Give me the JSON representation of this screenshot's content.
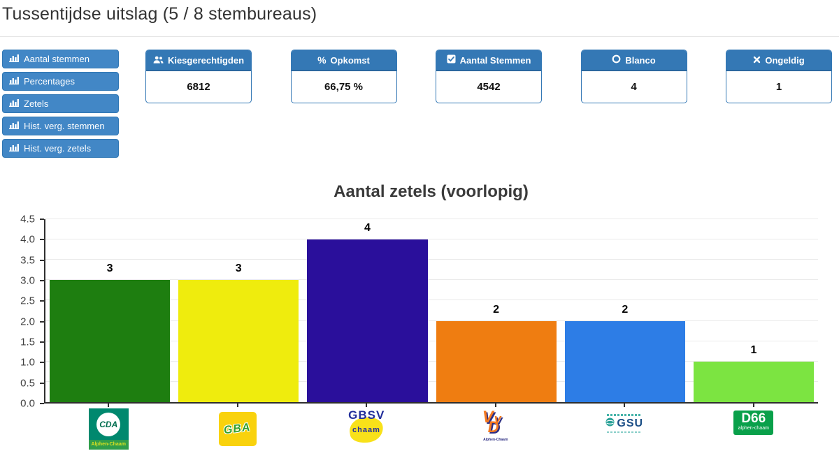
{
  "theme": {
    "button_blue": "#4287c6",
    "card_header_blue": "#3478b5",
    "card_header_border": "#2b679e",
    "axis_color": "#2f2f2f",
    "grid_color": "#eaeaea"
  },
  "page": {
    "title": "Tussentijdse uitslag (5 / 8 stembureaus)"
  },
  "sidebar": {
    "buttons": [
      {
        "icon": "bar-chart-icon",
        "label": "Aantal stemmen"
      },
      {
        "icon": "bar-chart-icon",
        "label": "Percentages"
      },
      {
        "icon": "bar-chart-icon",
        "label": "Zetels"
      },
      {
        "icon": "bar-chart-icon",
        "label": "Hist. verg. stemmen"
      },
      {
        "icon": "bar-chart-icon",
        "label": "Hist. verg. zetels"
      }
    ]
  },
  "stats": {
    "cards": [
      {
        "icon": "users-icon",
        "label": "Kiesgerechtigden",
        "value": "6812"
      },
      {
        "icon": "percent-icon",
        "label": "Opkomst",
        "value": "66,75 %"
      },
      {
        "icon": "check-square-icon",
        "label": "Aantal Stemmen",
        "value": "4542"
      },
      {
        "icon": "circle-icon",
        "label": "Blanco",
        "value": "4"
      },
      {
        "icon": "x-icon",
        "label": "Ongeldig",
        "value": "1"
      }
    ]
  },
  "chart_data": {
    "type": "bar",
    "title": "Aantal zetels (voorlopig)",
    "categories": [
      "CDA",
      "GBA",
      "GBSV",
      "VVD",
      "GSU",
      "D66"
    ],
    "values": [
      3,
      3,
      4,
      2,
      2,
      1
    ],
    "colors": [
      "#1e7e10",
      "#efec0d",
      "#2a0f9b",
      "#ef7d11",
      "#2d7de6",
      "#7ce441"
    ],
    "xlabel": "",
    "ylabel": "",
    "ylim": [
      0,
      4.5
    ],
    "ytick_step": 0.5,
    "grid": true,
    "legend": false,
    "value_labels": true
  },
  "parties": [
    {
      "name": "CDA",
      "logo": {
        "title": "CDA",
        "subtitle": "Alphen-Chaam"
      }
    },
    {
      "name": "GBA",
      "logo": {
        "title": "GBA"
      }
    },
    {
      "name": "GBSV",
      "logo": {
        "title": "GBSV",
        "subtitle": "chaam"
      }
    },
    {
      "name": "VVD",
      "logo": {
        "letters": [
          "V",
          "v",
          "D"
        ],
        "subtitle": "Alphen-Chaam"
      }
    },
    {
      "name": "GSU",
      "logo": {
        "title": "GSU"
      }
    },
    {
      "name": "D66",
      "logo": {
        "title": "D66",
        "subtitle": "alphen-chaam"
      }
    }
  ]
}
